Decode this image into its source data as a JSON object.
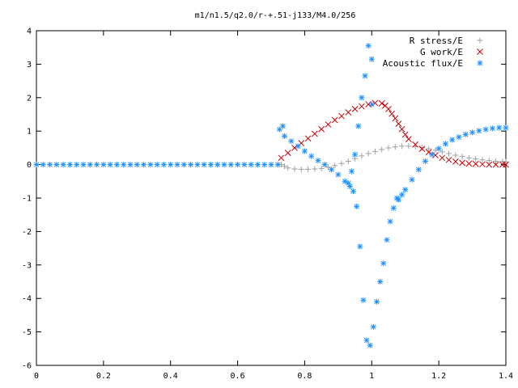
{
  "chart_data": {
    "type": "scatter",
    "title": "m1/n1.5/q2.0/r-+.51-j133/M4.0/256",
    "xlabel": "",
    "ylabel": "",
    "xlim": [
      0,
      1.4
    ],
    "ylim": [
      -6,
      4
    ],
    "x_ticks": [
      "0",
      "0.2",
      "0.4",
      "0.6",
      "0.8",
      "1",
      "1.2",
      "1.4"
    ],
    "y_ticks": [
      "4",
      "3",
      "2",
      "1",
      "0",
      "-1",
      "-2",
      "-3",
      "-4",
      "-5",
      "-6"
    ],
    "legend_position": "top-right",
    "grid": false,
    "series": [
      {
        "name": "R stress/E",
        "marker": "plus",
        "color": "#a0a0a0",
        "points": [
          [
            0.73,
            0.0
          ],
          [
            0.74,
            -0.05
          ],
          [
            0.75,
            -0.1
          ],
          [
            0.77,
            -0.13
          ],
          [
            0.79,
            -0.14
          ],
          [
            0.81,
            -0.14
          ],
          [
            0.83,
            -0.13
          ],
          [
            0.85,
            -0.12
          ],
          [
            0.87,
            -0.08
          ],
          [
            0.89,
            -0.03
          ],
          [
            0.91,
            0.03
          ],
          [
            0.93,
            0.1
          ],
          [
            0.95,
            0.18
          ],
          [
            0.97,
            0.26
          ],
          [
            0.99,
            0.33
          ],
          [
            1.01,
            0.39
          ],
          [
            1.03,
            0.45
          ],
          [
            1.05,
            0.5
          ],
          [
            1.07,
            0.53
          ],
          [
            1.09,
            0.55
          ],
          [
            1.11,
            0.55
          ],
          [
            1.13,
            0.54
          ],
          [
            1.15,
            0.51
          ],
          [
            1.17,
            0.47
          ],
          [
            1.19,
            0.43
          ],
          [
            1.21,
            0.38
          ],
          [
            1.23,
            0.33
          ],
          [
            1.25,
            0.28
          ],
          [
            1.27,
            0.24
          ],
          [
            1.29,
            0.2
          ],
          [
            1.31,
            0.17
          ],
          [
            1.33,
            0.14
          ],
          [
            1.35,
            0.12
          ],
          [
            1.37,
            0.1
          ],
          [
            1.39,
            0.09
          ],
          [
            1.4,
            0.08
          ]
        ]
      },
      {
        "name": "G work/E",
        "marker": "cross",
        "color": "#cc0000",
        "points": [
          [
            0.73,
            0.2
          ],
          [
            0.75,
            0.35
          ],
          [
            0.77,
            0.5
          ],
          [
            0.79,
            0.64
          ],
          [
            0.81,
            0.78
          ],
          [
            0.83,
            0.92
          ],
          [
            0.85,
            1.06
          ],
          [
            0.87,
            1.2
          ],
          [
            0.89,
            1.33
          ],
          [
            0.91,
            1.45
          ],
          [
            0.93,
            1.56
          ],
          [
            0.95,
            1.66
          ],
          [
            0.97,
            1.74
          ],
          [
            0.99,
            1.8
          ],
          [
            1.01,
            1.84
          ],
          [
            1.03,
            1.83
          ],
          [
            1.04,
            1.76
          ],
          [
            1.05,
            1.66
          ],
          [
            1.06,
            1.52
          ],
          [
            1.07,
            1.38
          ],
          [
            1.08,
            1.22
          ],
          [
            1.09,
            1.06
          ],
          [
            1.1,
            0.9
          ],
          [
            1.11,
            0.76
          ],
          [
            1.13,
            0.6
          ],
          [
            1.15,
            0.47
          ],
          [
            1.17,
            0.37
          ],
          [
            1.19,
            0.28
          ],
          [
            1.21,
            0.2
          ],
          [
            1.23,
            0.14
          ],
          [
            1.25,
            0.09
          ],
          [
            1.27,
            0.05
          ],
          [
            1.29,
            0.03
          ],
          [
            1.31,
            0.02
          ],
          [
            1.33,
            0.01
          ],
          [
            1.35,
            0.0
          ],
          [
            1.37,
            0.0
          ],
          [
            1.39,
            0.0
          ],
          [
            1.4,
            0.0
          ]
        ]
      },
      {
        "name": "Acoustic flux/E",
        "marker": "star",
        "color": "#1e90ff",
        "points": [
          [
            0.0,
            0.0
          ],
          [
            0.02,
            0.0
          ],
          [
            0.04,
            0.0
          ],
          [
            0.06,
            0.0
          ],
          [
            0.08,
            0.0
          ],
          [
            0.1,
            0.0
          ],
          [
            0.12,
            0.0
          ],
          [
            0.14,
            0.0
          ],
          [
            0.16,
            0.0
          ],
          [
            0.18,
            0.0
          ],
          [
            0.2,
            0.0
          ],
          [
            0.22,
            0.0
          ],
          [
            0.24,
            0.0
          ],
          [
            0.26,
            0.0
          ],
          [
            0.28,
            0.0
          ],
          [
            0.3,
            0.0
          ],
          [
            0.32,
            0.0
          ],
          [
            0.34,
            0.0
          ],
          [
            0.36,
            0.0
          ],
          [
            0.38,
            0.0
          ],
          [
            0.4,
            0.0
          ],
          [
            0.42,
            0.0
          ],
          [
            0.44,
            0.0
          ],
          [
            0.46,
            0.0
          ],
          [
            0.48,
            0.0
          ],
          [
            0.5,
            0.0
          ],
          [
            0.52,
            0.0
          ],
          [
            0.54,
            0.0
          ],
          [
            0.56,
            0.0
          ],
          [
            0.58,
            0.0
          ],
          [
            0.6,
            0.0
          ],
          [
            0.62,
            0.0
          ],
          [
            0.64,
            0.0
          ],
          [
            0.66,
            0.0
          ],
          [
            0.68,
            0.0
          ],
          [
            0.7,
            0.0
          ],
          [
            0.72,
            0.0
          ],
          [
            0.725,
            1.05
          ],
          [
            0.735,
            1.15
          ],
          [
            0.74,
            0.85
          ],
          [
            0.76,
            0.7
          ],
          [
            0.78,
            0.55
          ],
          [
            0.8,
            0.4
          ],
          [
            0.82,
            0.25
          ],
          [
            0.84,
            0.12
          ],
          [
            0.86,
            0.0
          ],
          [
            0.88,
            -0.15
          ],
          [
            0.9,
            -0.3
          ],
          [
            0.92,
            -0.5
          ],
          [
            0.935,
            -0.65
          ],
          [
            0.945,
            -0.8
          ],
          [
            0.955,
            -1.25
          ],
          [
            0.965,
            -2.45
          ],
          [
            0.975,
            -4.05
          ],
          [
            0.985,
            -5.25
          ],
          [
            0.995,
            -5.4
          ],
          [
            1.005,
            -4.85
          ],
          [
            1.015,
            -4.1
          ],
          [
            1.025,
            -3.5
          ],
          [
            1.035,
            -2.95
          ],
          [
            1.045,
            -2.25
          ],
          [
            1.055,
            -1.7
          ],
          [
            1.065,
            -1.3
          ],
          [
            1.075,
            -1.0
          ],
          [
            1.08,
            -1.05
          ],
          [
            1.09,
            -0.9
          ],
          [
            1.1,
            -0.75
          ],
          [
            1.12,
            -0.45
          ],
          [
            1.14,
            -0.15
          ],
          [
            1.16,
            0.1
          ],
          [
            1.18,
            0.3
          ],
          [
            1.2,
            0.48
          ],
          [
            1.22,
            0.62
          ],
          [
            1.24,
            0.74
          ],
          [
            1.26,
            0.82
          ],
          [
            1.28,
            0.9
          ],
          [
            1.3,
            0.96
          ],
          [
            1.32,
            1.01
          ],
          [
            1.34,
            1.05
          ],
          [
            1.36,
            1.08
          ],
          [
            1.38,
            1.1
          ],
          [
            1.4,
            1.1
          ],
          [
            0.93,
            -0.55
          ],
          [
            0.94,
            -0.2
          ],
          [
            0.95,
            0.3
          ],
          [
            0.96,
            1.15
          ],
          [
            0.97,
            2.0
          ],
          [
            0.98,
            2.65
          ],
          [
            0.99,
            3.55
          ],
          [
            1.0,
            3.15
          ],
          [
            1.0,
            1.8
          ]
        ]
      }
    ]
  }
}
